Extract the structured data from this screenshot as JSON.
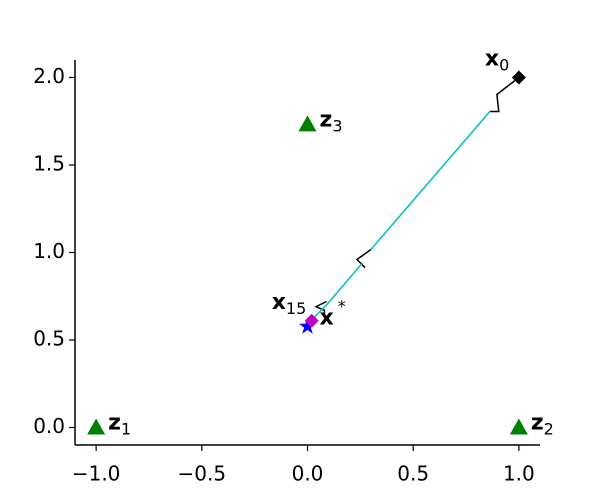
{
  "chart_data": {
    "type": "line",
    "xlim": [
      -1.1,
      1.1
    ],
    "ylim": [
      -0.1,
      2.1
    ],
    "xticks": [
      {
        "value": -1.0,
        "label": "−1.0"
      },
      {
        "value": -0.5,
        "label": "−0.5"
      },
      {
        "value": 0.0,
        "label": "0.0"
      },
      {
        "value": 0.5,
        "label": "0.5"
      },
      {
        "value": 1.0,
        "label": "1.0"
      }
    ],
    "yticks": [
      {
        "value": 0.0,
        "label": "0.0"
      },
      {
        "value": 0.5,
        "label": "0.5"
      },
      {
        "value": 1.0,
        "label": "1.0"
      },
      {
        "value": 1.5,
        "label": "1.5"
      },
      {
        "value": 2.0,
        "label": "2.0"
      }
    ],
    "series": [
      {
        "color": "#000000",
        "x": [
          1.0,
          0.896,
          0.905,
          0.863,
          null,
          0.3,
          0.234,
          0.272,
          null,
          0.09,
          0.04,
          0.08,
          0.08
        ],
        "values": [
          2.0,
          1.903,
          1.806,
          1.806,
          null,
          1.017,
          0.96,
          0.914,
          null,
          0.72,
          0.69,
          0.67,
          0.63
        ]
      },
      {
        "color": "#00bfbf",
        "x": [
          0.863,
          0.3,
          null,
          0.26,
          0.09,
          0.04,
          0.02
        ],
        "values": [
          1.806,
          1.017,
          null,
          0.94,
          0.7,
          0.64,
          0.61
        ]
      }
    ],
    "markers": [
      {
        "x": -1.0,
        "y": 0.0,
        "marker": "triangle",
        "color": "#008000",
        "label": "z",
        "sub": "1"
      },
      {
        "x": 1.0,
        "y": 0.0,
        "marker": "triangle",
        "color": "#008000",
        "label": "z",
        "sub": "2"
      },
      {
        "x": 0.0,
        "y": 1.732,
        "marker": "triangle",
        "color": "#008000",
        "label": "z",
        "sub": "3"
      },
      {
        "x": 1.0,
        "y": 2.0,
        "marker": "diamond",
        "color": "#000000",
        "label": "x",
        "sub": "0"
      },
      {
        "x": 0.0,
        "y": 0.577,
        "marker": "star",
        "color": "#0000ff",
        "label": "x",
        "sup": "*"
      },
      {
        "x": 0.02,
        "y": 0.61,
        "marker": "diamond",
        "color": "#bf00bf",
        "label": "x",
        "sub": "15"
      }
    ]
  }
}
